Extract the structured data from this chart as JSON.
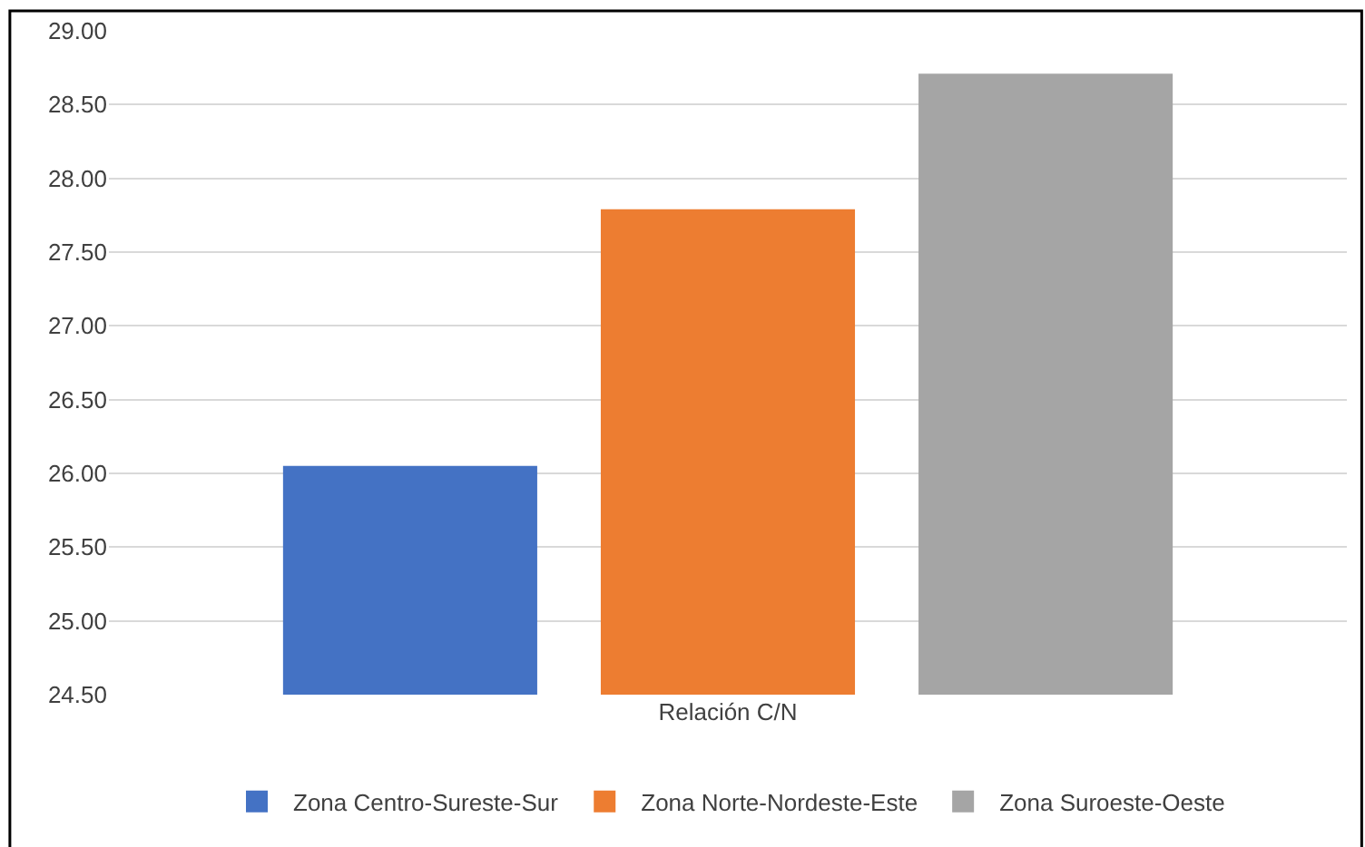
{
  "chart_data": {
    "type": "bar",
    "xlabel": null,
    "categories": [
      "Relación C/N"
    ],
    "series": [
      {
        "name": "Zona Centro-Sureste-Sur",
        "color": "#4472c4",
        "values": [
          26.05
        ]
      },
      {
        "name": "Zona Norte-Nordeste-Este",
        "color": "#ed7d31",
        "values": [
          27.79
        ]
      },
      {
        "name": "Zona Suroeste-Oeste",
        "color": "#a5a5a5",
        "values": [
          28.71
        ]
      }
    ],
    "ylim": [
      24.5,
      29.0
    ],
    "yticks": [
      {
        "value": 24.5,
        "label": "24.50"
      },
      {
        "value": 25.0,
        "label": "25.00"
      },
      {
        "value": 25.5,
        "label": "25.50"
      },
      {
        "value": 26.0,
        "label": "26.00"
      },
      {
        "value": 26.5,
        "label": "26.50"
      },
      {
        "value": 27.0,
        "label": "27.00"
      },
      {
        "value": 27.5,
        "label": "27.50"
      },
      {
        "value": 28.0,
        "label": "28.00"
      },
      {
        "value": 28.5,
        "label": "28.50"
      },
      {
        "value": 29.0,
        "label": "29.00"
      }
    ],
    "grid": "y",
    "legend": "bottom"
  }
}
